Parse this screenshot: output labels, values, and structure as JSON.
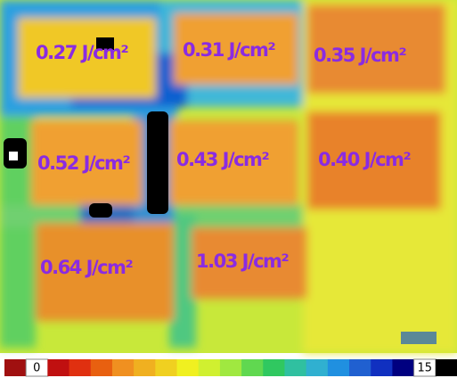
{
  "labels": [
    "0.27 J/cm²",
    "0.31 J/cm²",
    "0.35 J/cm²",
    "0.52 J/cm²",
    "0.43 J/cm²",
    "0.40 J/cm²",
    "0.64 J/cm²",
    "1.03 J/cm²"
  ],
  "colorbar": {
    "min_label": "0",
    "max_label": "15"
  }
}
